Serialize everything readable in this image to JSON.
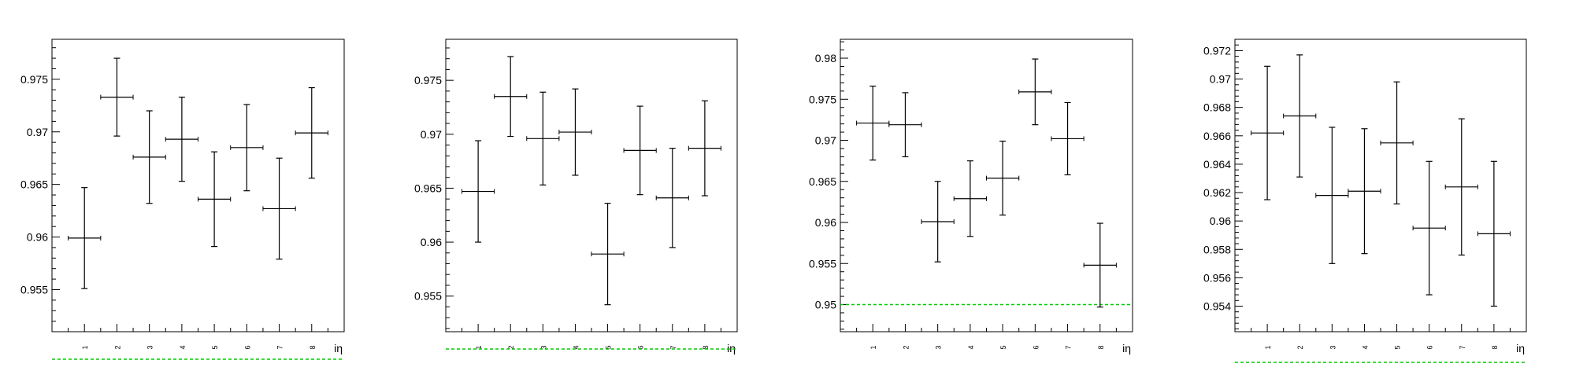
{
  "chart_data": [
    {
      "type": "scatter",
      "title": "",
      "xlabel": "iη",
      "ylabel": "",
      "categories": [
        "1",
        "2",
        "3",
        "4",
        "5",
        "6",
        "7",
        "8"
      ],
      "xlim": [
        0,
        9
      ],
      "ylim": [
        0.951,
        0.9788
      ],
      "yticks_major": [
        "0.955",
        "0.96",
        "0.965",
        "0.97",
        "0.975"
      ],
      "points": [
        {
          "x": 1,
          "y": 0.9599,
          "err": 0.0048
        },
        {
          "x": 2,
          "y": 0.9733,
          "err": 0.0037
        },
        {
          "x": 3,
          "y": 0.9676,
          "err": 0.0044
        },
        {
          "x": 4,
          "y": 0.9693,
          "err": 0.004
        },
        {
          "x": 5,
          "y": 0.9636,
          "err": 0.0045
        },
        {
          "x": 6,
          "y": 0.9685,
          "err": 0.0041
        },
        {
          "x": 7,
          "y": 0.9627,
          "err": 0.0048
        },
        {
          "x": 8,
          "y": 0.9699,
          "err": 0.0043
        }
      ],
      "reference_line": {
        "y": 0.95,
        "color": "#00cc00",
        "style": "dashed"
      },
      "grid": false,
      "legend": "none"
    },
    {
      "type": "scatter",
      "title": "",
      "xlabel": "iη",
      "ylabel": "",
      "categories": [
        "1",
        "2",
        "3",
        "4",
        "5",
        "6",
        "7",
        "8"
      ],
      "xlim": [
        0,
        9
      ],
      "ylim": [
        0.9517,
        0.9788
      ],
      "yticks_major": [
        "0.955",
        "0.96",
        "0.965",
        "0.97",
        "0.975"
      ],
      "points": [
        {
          "x": 1,
          "y": 0.9647,
          "err": 0.0047
        },
        {
          "x": 2,
          "y": 0.9735,
          "err": 0.0037
        },
        {
          "x": 3,
          "y": 0.9696,
          "err": 0.0043
        },
        {
          "x": 4,
          "y": 0.9702,
          "err": 0.004
        },
        {
          "x": 5,
          "y": 0.9589,
          "err": 0.0047
        },
        {
          "x": 6,
          "y": 0.9685,
          "err": 0.0041
        },
        {
          "x": 7,
          "y": 0.9641,
          "err": 0.0046
        },
        {
          "x": 8,
          "y": 0.9687,
          "err": 0.0044
        }
      ],
      "reference_line": {
        "y": 0.95,
        "color": "#00cc00",
        "style": "dashed"
      },
      "grid": false,
      "legend": "none"
    },
    {
      "type": "scatter",
      "title": "",
      "xlabel": "iη",
      "ylabel": "",
      "categories": [
        "1",
        "2",
        "3",
        "4",
        "5",
        "6",
        "7",
        "8"
      ],
      "xlim": [
        0,
        9
      ],
      "ylim": [
        0.9467,
        0.9823
      ],
      "yticks_major": [
        "0.95",
        "0.955",
        "0.96",
        "0.965",
        "0.97",
        "0.975",
        "0.98"
      ],
      "points": [
        {
          "x": 1,
          "y": 0.9721,
          "err": 0.0045
        },
        {
          "x": 2,
          "y": 0.9719,
          "err": 0.0039
        },
        {
          "x": 3,
          "y": 0.9601,
          "err": 0.0049
        },
        {
          "x": 4,
          "y": 0.9629,
          "err": 0.0046
        },
        {
          "x": 5,
          "y": 0.9654,
          "err": 0.0045
        },
        {
          "x": 6,
          "y": 0.9759,
          "err": 0.004
        },
        {
          "x": 7,
          "y": 0.9702,
          "err": 0.0044
        },
        {
          "x": 8,
          "y": 0.9548,
          "err": 0.0051
        }
      ],
      "reference_line": {
        "y": 0.95,
        "color": "#00cc00",
        "style": "dashed"
      },
      "grid": false,
      "legend": "none"
    },
    {
      "type": "scatter",
      "title": "",
      "xlabel": "iη",
      "ylabel": "",
      "categories": [
        "1",
        "2",
        "3",
        "4",
        "5",
        "6",
        "7",
        "8"
      ],
      "xlim": [
        0,
        9
      ],
      "ylim": [
        0.9522,
        0.9728
      ],
      "yticks_major": [
        "0.954",
        "0.956",
        "0.958",
        "0.96",
        "0.962",
        "0.964",
        "0.966",
        "0.968",
        "0.97",
        "0.972"
      ],
      "points": [
        {
          "x": 1,
          "y": 0.9662,
          "err": 0.0047
        },
        {
          "x": 2,
          "y": 0.9674,
          "err": 0.0043
        },
        {
          "x": 3,
          "y": 0.9618,
          "err": 0.0048
        },
        {
          "x": 4,
          "y": 0.9621,
          "err": 0.0044
        },
        {
          "x": 5,
          "y": 0.9655,
          "err": 0.0043
        },
        {
          "x": 6,
          "y": 0.9595,
          "err": 0.0047
        },
        {
          "x": 7,
          "y": 0.9624,
          "err": 0.0048
        },
        {
          "x": 8,
          "y": 0.9591,
          "err": 0.0051
        }
      ],
      "reference_line": {
        "y": 0.95,
        "color": "#00cc00",
        "style": "dashed"
      },
      "grid": false,
      "legend": "none"
    }
  ]
}
